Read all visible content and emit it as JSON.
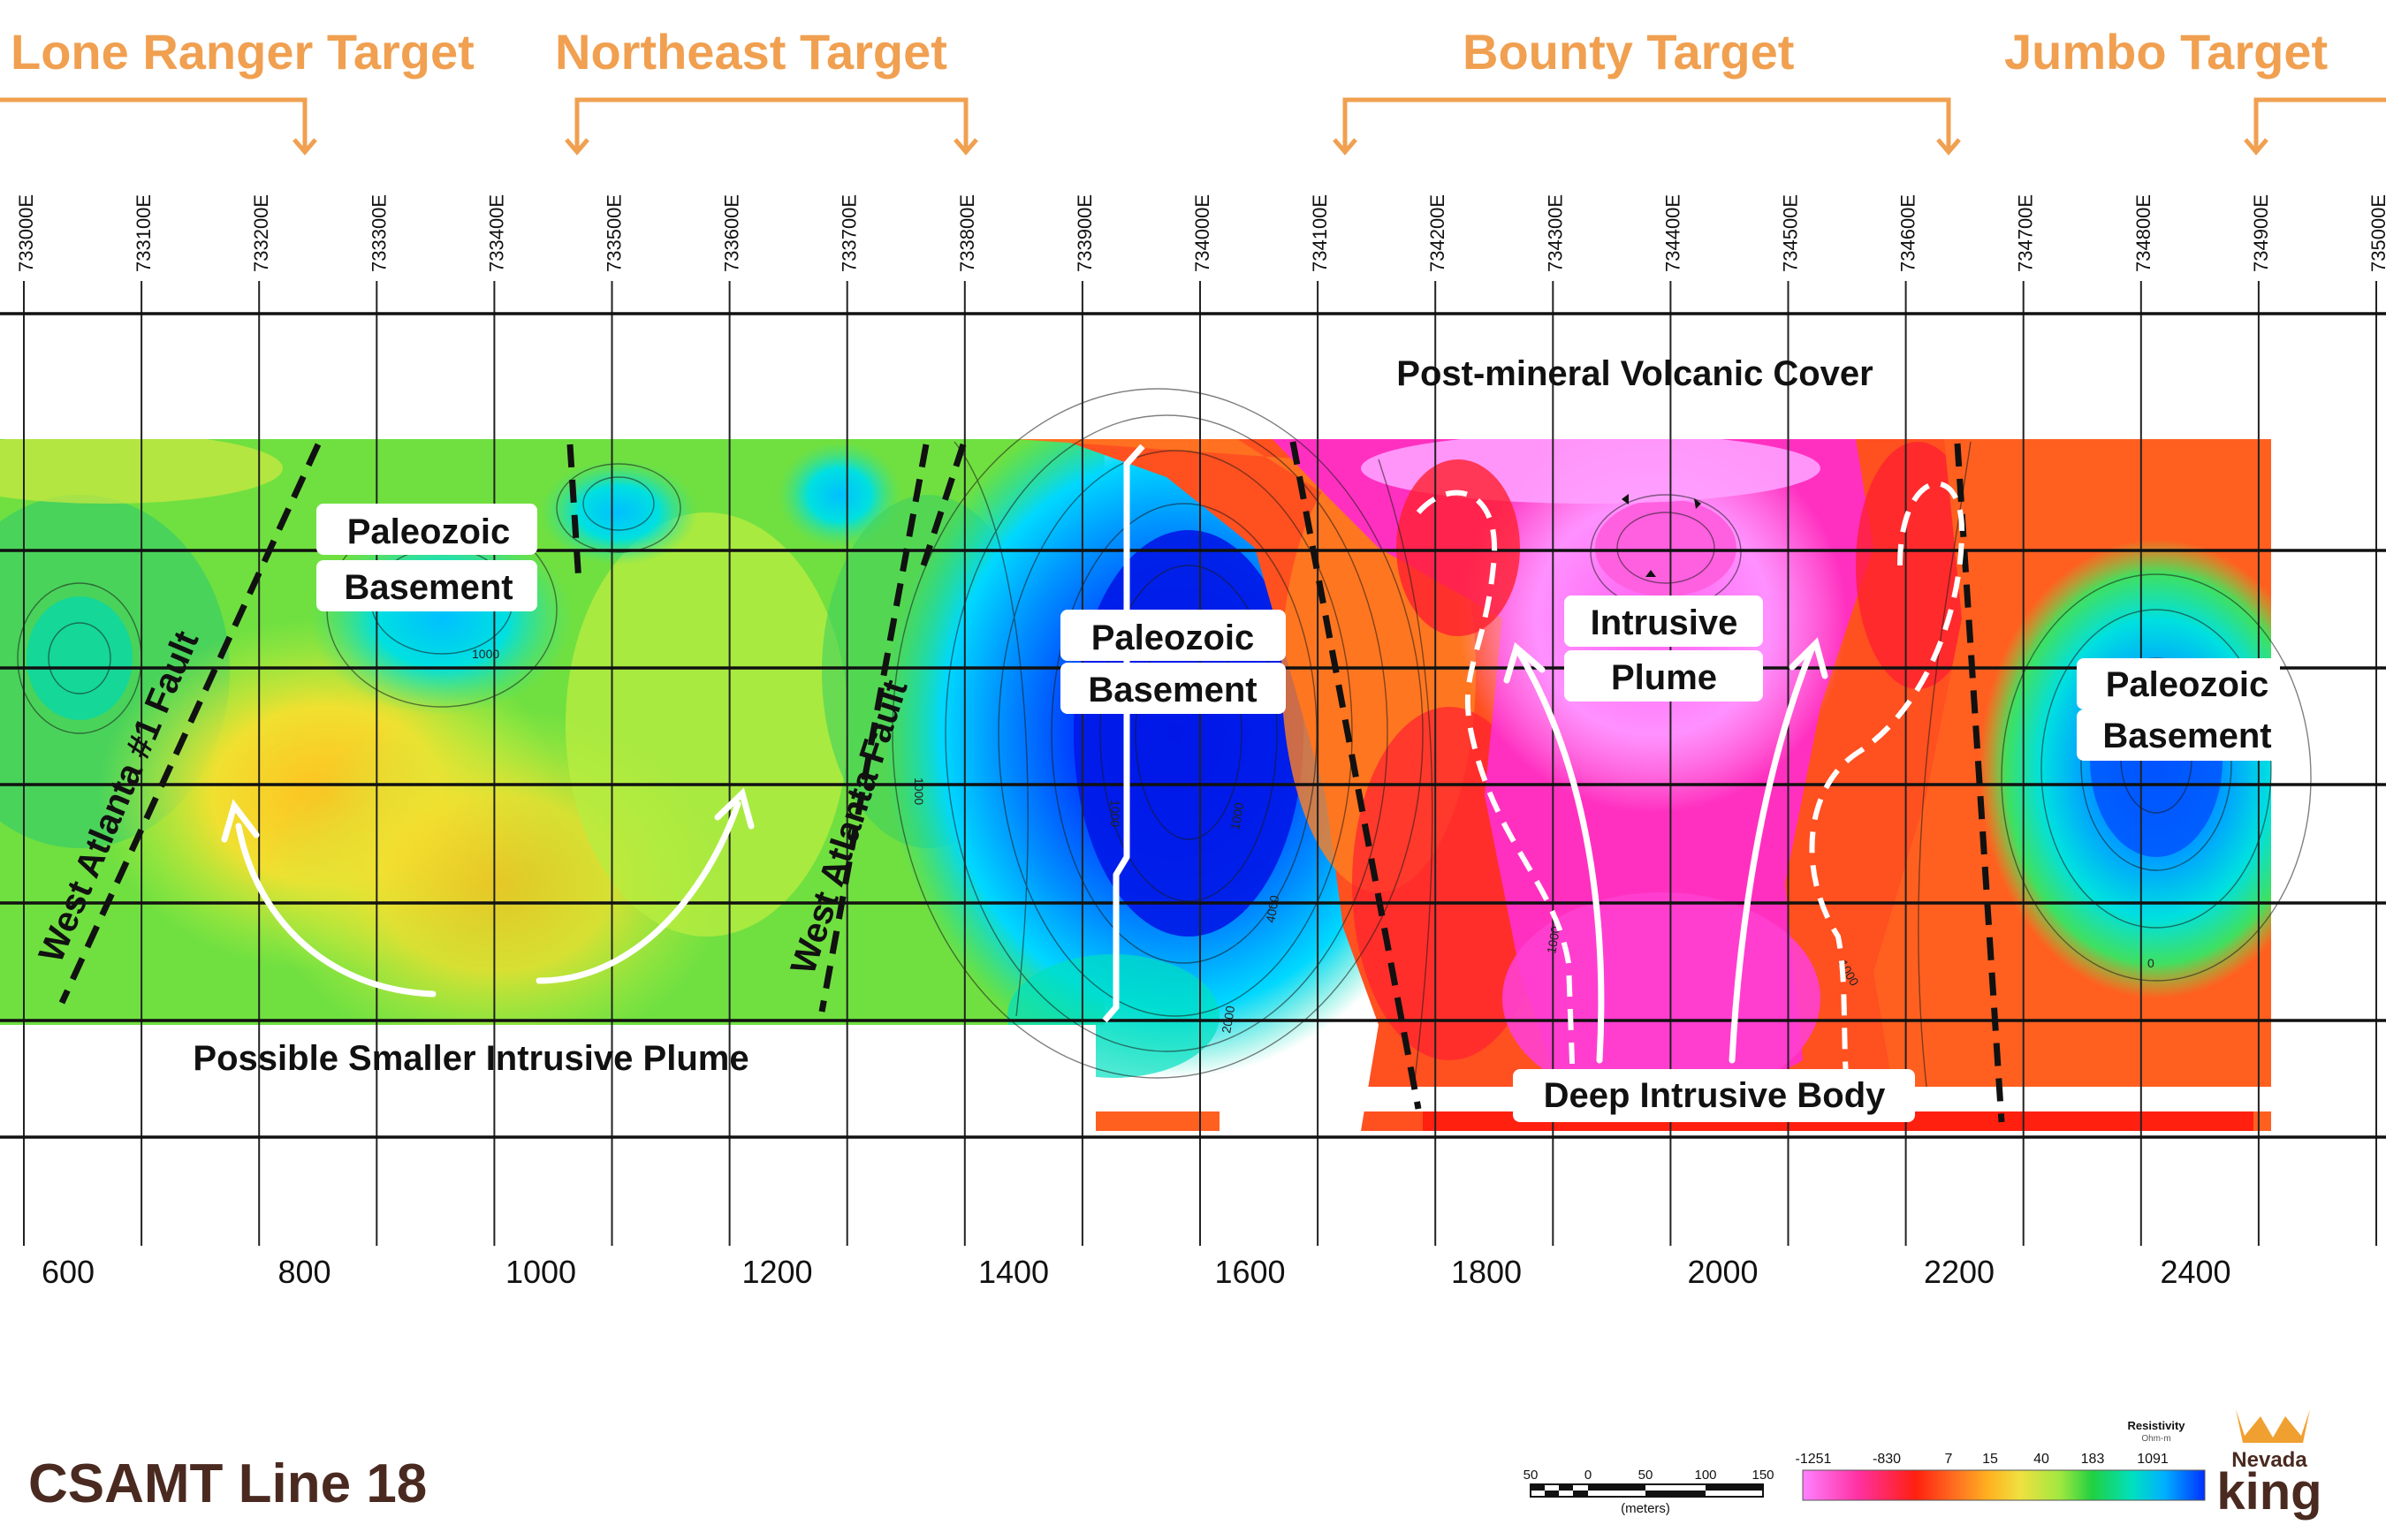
{
  "targets": [
    {
      "name": "Lone Ranger Target"
    },
    {
      "name": "Northeast Target"
    },
    {
      "name": "Bounty Target"
    },
    {
      "name": "Jumbo Target"
    }
  ],
  "eastings": [
    "733000E",
    "733100E",
    "733200E",
    "733300E",
    "733400E",
    "733500E",
    "733600E",
    "733700E",
    "733800E",
    "733900E",
    "734000E",
    "734100E",
    "734200E",
    "734300E",
    "734400E",
    "734500E",
    "734600E",
    "734700E",
    "734800E",
    "734900E",
    "735000E"
  ],
  "distance_ticks": [
    "600",
    "800",
    "1000",
    "1200",
    "1400",
    "1600",
    "1800",
    "2000",
    "2200",
    "2400"
  ],
  "labels": {
    "cover": "Post-mineral Volcanic Cover",
    "paleozoic_1_l1": "Paleozoic",
    "paleozoic_1_l2": "Basement",
    "paleozoic_2_l1": "Paleozoic",
    "paleozoic_2_l2": "Basement",
    "paleozoic_3_l1": "Paleozoic",
    "paleozoic_3_l2": "Basement",
    "intrusive_plume_l1": "Intrusive",
    "intrusive_plume_l2": "Plume",
    "smaller_plume": "Possible Smaller Intrusive Plume",
    "deep_body": "Deep Intrusive Body",
    "fault_1": "West Atlanta #1 Fault",
    "fault_2": "West Atlanta Fault"
  },
  "contour_labels": [
    "1000",
    "1000",
    "1000",
    "1000",
    "4000",
    "2000",
    "1000",
    "1000",
    "0"
  ],
  "map_title": "CSAMT Line 18",
  "scale_bar": {
    "ticks": [
      "50",
      "0",
      "50",
      "100",
      "150"
    ],
    "unit": "(meters)"
  },
  "legend": {
    "title": "Resistivity",
    "unit": "Ohm-m",
    "ticks": [
      "-1251",
      "-830",
      "7",
      "15",
      "40",
      "183",
      "1091"
    ],
    "colors": [
      "#ff80ff",
      "#ff40e0",
      "#ff3060",
      "#ff2010",
      "#ff5010",
      "#ff8020",
      "#ffb020",
      "#ffe040",
      "#d0f040",
      "#80e840",
      "#20d040",
      "#00e0a0",
      "#00c8ff",
      "#0080ff",
      "#0030ff"
    ]
  },
  "logo": {
    "line1": "Nevada",
    "line2": "king"
  },
  "colors": {
    "target": "#f0a050",
    "logo_text": "#4a2a20",
    "logo_crown": "#f0a030"
  }
}
